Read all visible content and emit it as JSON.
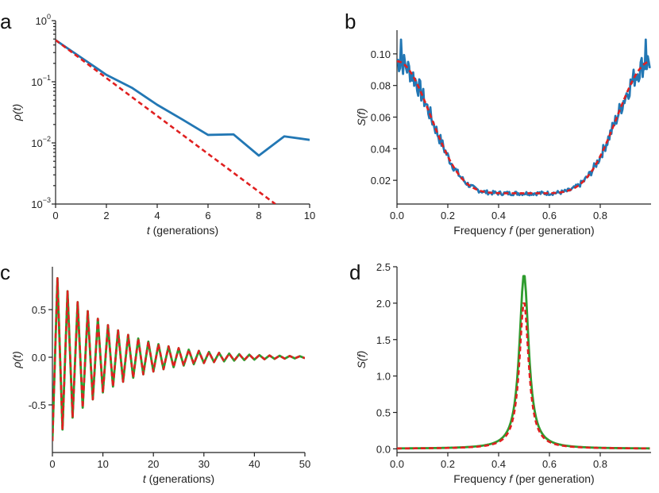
{
  "colors": {
    "blue": "#2277b4",
    "red": "#e02020",
    "green": "#2e9c2e",
    "axis": "#222222"
  },
  "chart_data": [
    {
      "panel": "a",
      "type": "line",
      "yscale": "log",
      "xlabel_italic": "t",
      "xlabel_rest": " (generations)",
      "ylabel": "ρ(t)",
      "xlim": [
        0,
        10
      ],
      "ylim": [
        0.001,
        1
      ],
      "xticks": [
        0,
        2,
        4,
        6,
        8,
        10
      ],
      "xtick_labels": [
        "0",
        "2",
        "4",
        "6",
        "8",
        "10"
      ],
      "yticks": [
        1,
        0.1,
        0.01,
        0.001
      ],
      "ytick_base": [
        "10",
        "10",
        "10",
        "10"
      ],
      "ytick_exp": [
        "0",
        "−1",
        "−2",
        "−3"
      ],
      "series": [
        {
          "color": "blue",
          "style": "solid",
          "x": [
            0,
            1,
            2,
            3,
            4,
            5,
            6,
            7,
            8,
            9,
            10
          ],
          "y": [
            0.48,
            0.25,
            0.13,
            0.08,
            0.042,
            0.024,
            0.0135,
            0.0138,
            0.0062,
            0.0128,
            0.0112
          ]
        },
        {
          "color": "red",
          "style": "dashed",
          "x": [
            0,
            8.65
          ],
          "y": [
            0.48,
            0.001
          ]
        }
      ]
    },
    {
      "panel": "b",
      "type": "line",
      "xlabel": "Frequency f (per generation)",
      "ylabel": "S(f)",
      "xlim": [
        0,
        1
      ],
      "ylim": [
        0.005,
        0.115
      ],
      "xticks": [
        0,
        0.2,
        0.4,
        0.6,
        0.8
      ],
      "xtick_labels": [
        "0.0",
        "0.2",
        "0.4",
        "0.6",
        "0.8"
      ],
      "yticks": [
        0.02,
        0.04,
        0.06,
        0.08,
        0.1
      ],
      "ytick_labels": [
        "0.02",
        "0.04",
        "0.06",
        "0.08",
        "0.10"
      ],
      "series": [
        {
          "color": "blue",
          "style": "solid",
          "kind": "noisy_spectrum"
        },
        {
          "color": "red",
          "style": "dashed",
          "kind": "smooth_spectrum"
        }
      ]
    },
    {
      "panel": "c",
      "type": "line",
      "xlabel_italic": "t",
      "xlabel_rest": " (generations)",
      "ylabel": "ρ(t)",
      "xlim": [
        0,
        50
      ],
      "ylim": [
        -1.0,
        0.95
      ],
      "xticks": [
        0,
        10,
        20,
        30,
        40,
        50
      ],
      "xtick_labels": [
        "0",
        "10",
        "20",
        "30",
        "40",
        "50"
      ],
      "yticks": [
        -0.5,
        0,
        0.5
      ],
      "ytick_labels": [
        "-0.5",
        "0.0",
        "0.5"
      ],
      "series": [
        {
          "color": "green",
          "style": "solid",
          "kind": "damped_oscillation"
        },
        {
          "color": "red",
          "style": "dashed",
          "kind": "damped_oscillation"
        }
      ]
    },
    {
      "panel": "d",
      "type": "line",
      "xlabel": "Frequency f (per generation)",
      "ylabel": "S(f)",
      "xlim": [
        0,
        1
      ],
      "ylim": [
        -0.05,
        2.5
      ],
      "xticks": [
        0,
        0.2,
        0.4,
        0.6,
        0.8
      ],
      "xtick_labels": [
        "0.0",
        "0.2",
        "0.4",
        "0.6",
        "0.8"
      ],
      "yticks": [
        0,
        0.5,
        1.0,
        1.5,
        2.0,
        2.5
      ],
      "ytick_labels": [
        "0.0",
        "0.5",
        "1.0",
        "1.5",
        "2.0",
        "2.5"
      ],
      "series": [
        {
          "color": "green",
          "style": "solid",
          "kind": "lorentzian",
          "peak_x": 0.5,
          "peak_y": 2.4
        },
        {
          "color": "red",
          "style": "dashed",
          "kind": "lorentzian",
          "peak_x": 0.5,
          "peak_y": 2.02
        }
      ]
    }
  ]
}
